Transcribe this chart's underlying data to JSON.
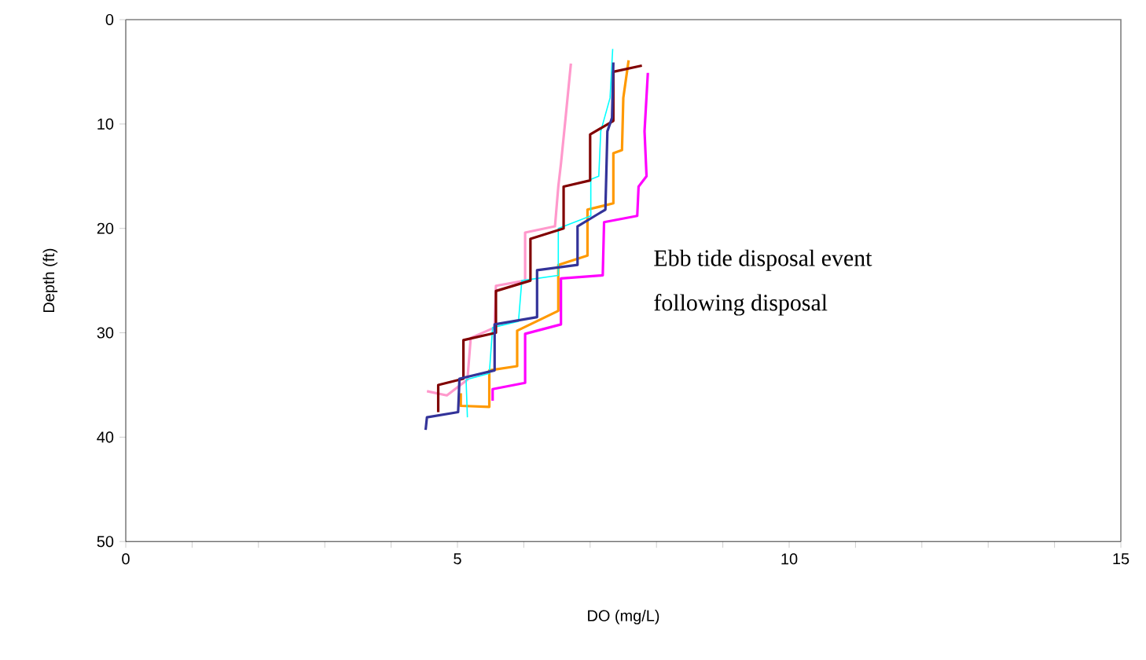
{
  "chart_data": {
    "type": "line",
    "xlabel": "DO (mg/L)",
    "ylabel": "Depth (ft)",
    "xlim": [
      0,
      15
    ],
    "ylim": [
      50,
      0
    ],
    "xticks": [
      0,
      {
        "value": 1,
        "label": null
      },
      {
        "value": 2,
        "label": null
      },
      {
        "value": 3,
        "label": null
      },
      {
        "value": 4,
        "label": null
      },
      5,
      {
        "value": 6,
        "label": null
      },
      {
        "value": 7,
        "label": null
      },
      {
        "value": 8,
        "label": null
      },
      {
        "value": 9,
        "label": null
      },
      10,
      {
        "value": 11,
        "label": null
      },
      {
        "value": 12,
        "label": null
      },
      {
        "value": 13,
        "label": null
      },
      {
        "value": 14,
        "label": null
      },
      15
    ],
    "yticks": [
      0,
      10,
      20,
      30,
      40,
      50
    ],
    "grid": false,
    "annotations": [
      "Ebb tide disposal event",
      "following disposal"
    ],
    "series": [
      {
        "color": "#ff99cc",
        "x": [
          6.71,
          6.63,
          6.56,
          6.52,
          6.47,
          6.02,
          6.02,
          5.58,
          5.56,
          5.2,
          5.15,
          4.84,
          4.54
        ],
        "values": [
          4.2,
          9.4,
          13.8,
          16,
          19.8,
          20.4,
          25,
          25.5,
          29.5,
          30.5,
          34.5,
          36,
          35.6
        ]
      },
      {
        "color": "#ff00ff",
        "x": [
          7.87,
          7.82,
          7.85,
          7.73,
          7.71,
          7.21,
          7.19,
          6.56,
          6.56,
          6.02,
          6.02,
          5.53,
          5.53
        ],
        "values": [
          5.1,
          10.7,
          15,
          16,
          18.8,
          19.4,
          24.5,
          24.8,
          29.2,
          30.1,
          34.8,
          35.4,
          36.5
        ]
      },
      {
        "color": "#ff9900",
        "x": [
          7.58,
          7.5,
          7.48,
          7.35,
          7.35,
          6.96,
          6.96,
          6.52,
          6.52,
          5.9,
          5.9,
          5.48,
          5.48,
          5.05,
          5.05
        ],
        "values": [
          3.9,
          7.5,
          12.5,
          12.8,
          17.6,
          18.2,
          22.6,
          23.5,
          27.9,
          29.8,
          33.2,
          33.6,
          37.1,
          37,
          35.8
        ]
      },
      {
        "color": "#00ffff",
        "x": [
          7.34,
          7.3,
          7.16,
          7.13,
          7.01,
          7.01,
          6.52,
          6.52,
          5.97,
          5.92,
          5.53,
          5.48,
          5.13,
          5.15
        ],
        "values": [
          2.8,
          7.5,
          10.7,
          15,
          15.3,
          18.8,
          20,
          24.5,
          25,
          28.9,
          29.5,
          33.9,
          34.5,
          38.1
        ]
      },
      {
        "color": "#800000",
        "x": [
          7.78,
          7.35,
          7.35,
          7.0,
          7.0,
          6.6,
          6.6,
          6.1,
          6.1,
          5.58,
          5.58,
          5.09,
          5.09,
          4.71,
          4.71
        ],
        "values": [
          4.4,
          5.0,
          9.7,
          11,
          15.4,
          16,
          20,
          21,
          25,
          26,
          30,
          30.7,
          34.4,
          35,
          37.6
        ]
      },
      {
        "color": "#333399",
        "x": [
          7.35,
          7.33,
          7.26,
          7.23,
          6.81,
          6.81,
          6.2,
          6.2,
          5.56,
          5.56,
          5.03,
          5.01,
          4.54,
          4.52
        ],
        "values": [
          4.1,
          9.4,
          10.7,
          18.2,
          19.8,
          23.5,
          24,
          28.5,
          29.2,
          33.6,
          34.4,
          37.6,
          38.1,
          39.3
        ]
      }
    ]
  }
}
